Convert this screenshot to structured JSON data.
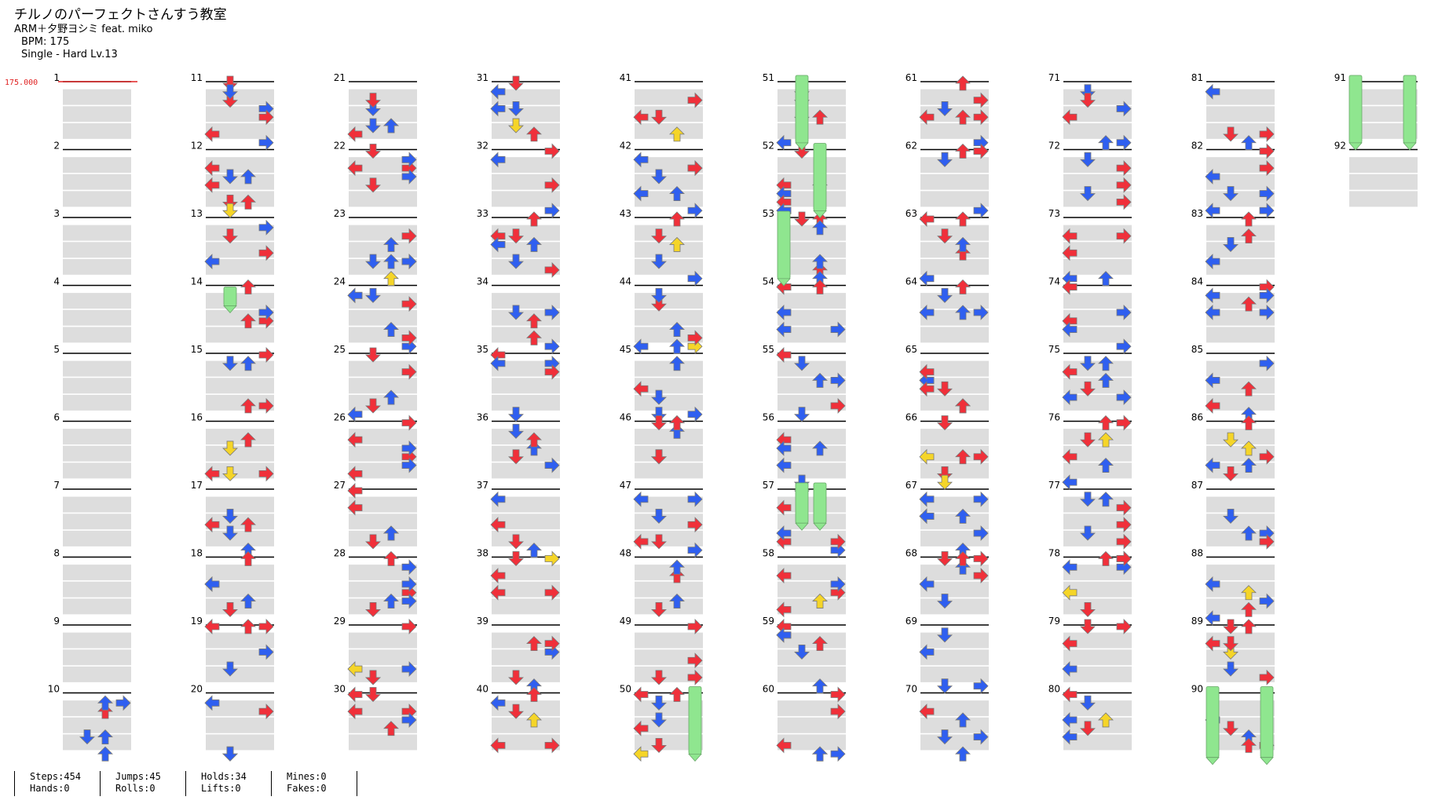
{
  "header": {
    "title": "チルノのパーフェクトさんすう教室",
    "artist": "ARM＋夕野ヨシミ feat. miko",
    "bpm_label": "BPM: 175",
    "difficulty_label": "Single - Hard  Lv.13"
  },
  "bpm_marker": "175.000",
  "colors": {
    "quarter_note": "#f0303a",
    "eighth_note": "#2f5ff0",
    "sixteenth_note": "#f5d528",
    "hold": "#8fe68f",
    "measure_line": "#000000",
    "beat_band": "#dddddd",
    "bpm_marker": "#e02020"
  },
  "icons": {
    "note": "arrow-note-icon",
    "hold": "freeze-hold-icon"
  },
  "measure_numbers": [
    1,
    2,
    3,
    4,
    5,
    6,
    7,
    8,
    9,
    10,
    11,
    12,
    13,
    14,
    15,
    16,
    17,
    18,
    19,
    20,
    21,
    22,
    23,
    24,
    25,
    26,
    27,
    28,
    29,
    30,
    31,
    32,
    33,
    34,
    35,
    36,
    37,
    38,
    39,
    40,
    41,
    42,
    43,
    44,
    45,
    46,
    47,
    48,
    49,
    50,
    51,
    52,
    53,
    54,
    55,
    56,
    57,
    58,
    59,
    60,
    61,
    62,
    63,
    64,
    65,
    66,
    67,
    68,
    69,
    70,
    71,
    72,
    73,
    74,
    75,
    76,
    77,
    78,
    79,
    80,
    81,
    82,
    83,
    84,
    85,
    86,
    87,
    88,
    89,
    90,
    91,
    92
  ],
  "stats": {
    "steps": "Steps:454",
    "hands": "Hands:0",
    "jumps": "Jumps:45",
    "rolls": "Rolls:0",
    "holds": "Holds:34",
    "lifts": "Lifts:0",
    "mines": "Mines:0",
    "fakes": "Fakes:0"
  }
}
